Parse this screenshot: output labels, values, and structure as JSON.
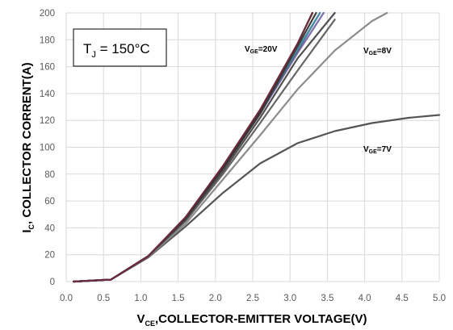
{
  "chart_data": {
    "type": "line",
    "xlabel_main": "V",
    "xlabel_sub": "CE",
    "xlabel_rest": ",COLLECTOR-EMITTER VOLTAGE(V)",
    "ylabel_main": "I",
    "ylabel_sub": "C",
    "ylabel_rest": ", COLLECTOR CORRENT(A)",
    "xlim": [
      0,
      5.0
    ],
    "ylim": [
      0,
      200
    ],
    "xticks": [
      0.0,
      0.5,
      1.0,
      1.5,
      2.0,
      2.5,
      3.0,
      3.5,
      4.0,
      4.5,
      5.0
    ],
    "xtick_labels": [
      "0.0",
      "0.5",
      "1.0",
      "1.5",
      "2.0",
      "2.5",
      "3.0",
      "3.5",
      "4.0",
      "4.5",
      "5.0"
    ],
    "yticks": [
      0,
      20,
      40,
      60,
      80,
      100,
      120,
      140,
      160,
      180,
      200
    ],
    "ytick_labels": [
      "0",
      "20",
      "40",
      "60",
      "80",
      "100",
      "120",
      "140",
      "160",
      "180",
      "200"
    ],
    "grid": true,
    "annotation": {
      "main": "T",
      "sub": "J",
      "rest": " = 150°C"
    },
    "series": [
      {
        "color": "#555555",
        "x": [
          0.1,
          0.6,
          1.1,
          1.6,
          2.1,
          2.6,
          3.1,
          3.6,
          4.1,
          4.6,
          5.0
        ],
        "values": [
          0,
          1.5,
          18,
          41,
          66,
          88,
          103,
          112,
          118,
          122,
          124
        ]
      },
      {
        "color": "#8c8c8c",
        "x": [
          0.1,
          0.6,
          1.1,
          1.6,
          2.1,
          2.6,
          3.1,
          3.6,
          4.1,
          4.3
        ],
        "values": [
          0,
          1.5,
          18.5,
          43,
          76,
          109,
          143,
          172,
          194,
          200
        ]
      },
      {
        "color": "#666666",
        "x": [
          0.1,
          0.6,
          1.1,
          1.6,
          2.1,
          2.6,
          3.1,
          3.6
        ],
        "values": [
          0,
          1.5,
          19,
          45,
          80,
          118,
          157,
          195
        ]
      },
      {
        "color": "#505050",
        "x": [
          0.1,
          0.6,
          1.1,
          1.6,
          2.1,
          2.6,
          3.1,
          3.6
        ],
        "values": [
          0,
          1.5,
          19,
          46,
          82,
          122,
          166,
          200
        ]
      },
      {
        "color": "#7a6fa8",
        "x": [
          0.1,
          0.6,
          1.1,
          1.6,
          2.1,
          2.6,
          3.1,
          3.45
        ],
        "values": [
          0,
          1.5,
          19,
          47,
          84,
          125,
          170,
          200
        ]
      },
      {
        "color": "#3f5a6e",
        "x": [
          0.1,
          0.6,
          1.1,
          1.6,
          2.1,
          2.6,
          3.1,
          3.4
        ],
        "values": [
          0,
          1.5,
          19,
          47,
          84,
          126,
          172,
          200
        ]
      },
      {
        "color": "#4a8fa8",
        "x": [
          0.1,
          0.6,
          1.1,
          1.6,
          2.1,
          2.6,
          3.1,
          3.4
        ],
        "values": [
          0,
          1.5,
          19,
          47,
          85,
          127,
          173,
          200
        ]
      },
      {
        "color": "#3c3c3c",
        "x": [
          0.1,
          0.6,
          1.1,
          1.6,
          2.1,
          2.6,
          3.1,
          3.35
        ],
        "values": [
          0,
          1.5,
          19,
          47,
          84,
          125,
          175,
          200
        ]
      },
      {
        "color": "#2f2f2f",
        "x": [
          0.1,
          0.6,
          1.1,
          1.6,
          2.1,
          2.6,
          3.1,
          3.3
        ],
        "values": [
          0,
          1.5,
          19,
          47,
          85,
          127,
          177,
          200
        ]
      },
      {
        "color": "#6b2b3a",
        "x": [
          0.1,
          0.6,
          1.1,
          1.6,
          2.1,
          2.6,
          3.1,
          3.3
        ],
        "values": [
          0,
          1.5,
          19,
          48,
          86,
          128,
          177,
          200
        ]
      }
    ],
    "labels": [
      {
        "main": "V",
        "sub": "GE",
        "rest": "=20V"
      },
      {
        "main": "V",
        "sub": "GE",
        "rest": "=8V"
      },
      {
        "main": "V",
        "sub": "GE",
        "rest": "=7V"
      }
    ]
  }
}
